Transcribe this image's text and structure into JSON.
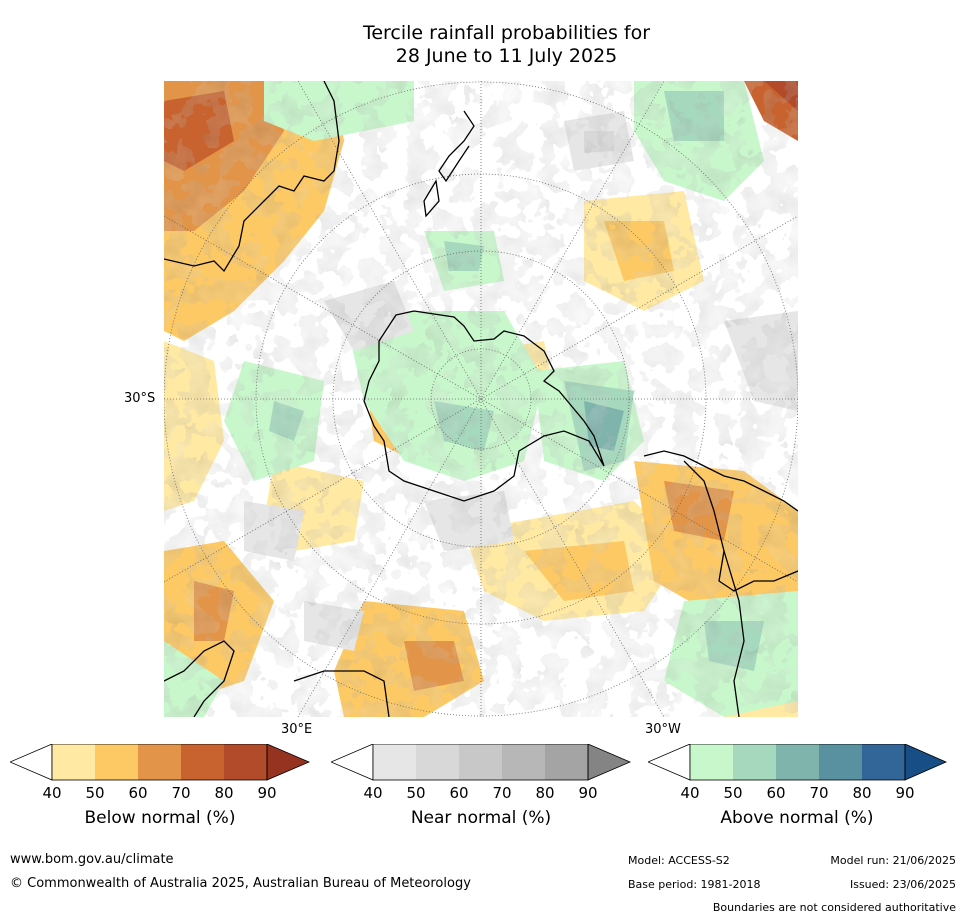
{
  "title_line1": "Tercile rainfall probabilities for",
  "title_line2": "28 June to 11 July 2025",
  "map": {
    "lat_label": "30°S",
    "lon_label_east": "30°E",
    "lon_label_west": "30°W"
  },
  "colorbars": [
    {
      "label": "Below normal (%)",
      "ticks": [
        "40",
        "50",
        "60",
        "70",
        "80",
        "90"
      ],
      "colors": [
        "#ffffff",
        "#ffe9a3",
        "#fdc964",
        "#e29448",
        "#c8632f",
        "#b14b2a",
        "#963320"
      ]
    },
    {
      "label": "Near normal (%)",
      "ticks": [
        "40",
        "50",
        "60",
        "70",
        "80",
        "90"
      ],
      "colors": [
        "#ffffff",
        "#e6e6e6",
        "#d8d8d8",
        "#c8c8c8",
        "#b7b7b7",
        "#a4a4a4",
        "#848484"
      ]
    },
    {
      "label": "Above normal (%)",
      "ticks": [
        "40",
        "50",
        "60",
        "70",
        "80",
        "90"
      ],
      "colors": [
        "#ffffff",
        "#c8f7cc",
        "#a5d8bd",
        "#7fb4ad",
        "#5a91a0",
        "#326598",
        "#174e85"
      ]
    }
  ],
  "footer": {
    "website": "www.bom.gov.au/climate",
    "copyright": "© Commonwealth of Australia 2025, Australian Bureau of Meteorology",
    "model": "Model: ACCESS-S2",
    "base_period": "Base period: 1981-2018",
    "model_run": "Model run: 21/06/2025",
    "issued": "Issued: 23/06/2025",
    "disclaimer": "Boundaries are not considered authoritative"
  }
}
